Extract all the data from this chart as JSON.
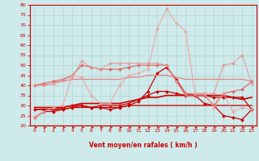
{
  "xlabel": "Vent moyen/en rafales ( km/h )",
  "xlim": [
    -0.5,
    23.5
  ],
  "ylim": [
    20,
    80
  ],
  "yticks": [
    20,
    25,
    30,
    35,
    40,
    45,
    50,
    55,
    60,
    65,
    70,
    75,
    80
  ],
  "xticks": [
    0,
    1,
    2,
    3,
    4,
    5,
    6,
    7,
    8,
    9,
    10,
    11,
    12,
    13,
    14,
    15,
    16,
    17,
    18,
    19,
    20,
    21,
    22,
    23
  ],
  "bg_color": "#ceeaea",
  "grid_color": "#b0d0d0",
  "series": [
    {
      "data": [
        24,
        27,
        27,
        28,
        29,
        30,
        29,
        29,
        28,
        29,
        30,
        32,
        37,
        46,
        49,
        43,
        36,
        35,
        31,
        30,
        25,
        24,
        23,
        28
      ],
      "color": "#cc0000",
      "linewidth": 0.9,
      "marker": "D",
      "markersize": 2.0,
      "alpha": 1.0
    },
    {
      "data": [
        28,
        28,
        28,
        28,
        29,
        29,
        29,
        29,
        29,
        29,
        30,
        30,
        30,
        30,
        30,
        30,
        30,
        30,
        30,
        30,
        30,
        30,
        30,
        30
      ],
      "color": "#cc0000",
      "linewidth": 0.9,
      "marker": null,
      "markersize": 0,
      "alpha": 1.0
    },
    {
      "data": [
        28,
        28,
        28,
        29,
        30,
        30,
        29,
        30,
        30,
        30,
        31,
        33,
        35,
        37,
        37,
        36,
        35,
        35,
        35,
        34,
        34,
        34,
        34,
        28
      ],
      "color": "#cc0000",
      "linewidth": 0.9,
      "marker": "D",
      "markersize": 2.0,
      "alpha": 1.0
    },
    {
      "data": [
        29,
        29,
        29,
        29,
        30,
        31,
        31,
        31,
        31,
        31,
        32,
        33,
        34,
        34,
        35,
        35,
        35,
        35,
        35,
        35,
        35,
        34,
        33,
        34
      ],
      "color": "#cc0000",
      "linewidth": 1.2,
      "marker": null,
      "markersize": 0,
      "alpha": 1.0
    },
    {
      "data": [
        40,
        40,
        41,
        42,
        43,
        43,
        43,
        43,
        43,
        43,
        44,
        44,
        45,
        45,
        45,
        44,
        43,
        43,
        43,
        43,
        43,
        43,
        43,
        42
      ],
      "color": "#e87878",
      "linewidth": 0.9,
      "marker": null,
      "markersize": 0,
      "alpha": 0.9
    },
    {
      "data": [
        40,
        41,
        42,
        43,
        45,
        50,
        49,
        48,
        48,
        48,
        49,
        50,
        50,
        50,
        50,
        42,
        35,
        35,
        35,
        30,
        36,
        37,
        38,
        42
      ],
      "color": "#e06060",
      "linewidth": 0.9,
      "marker": "D",
      "markersize": 2.0,
      "alpha": 0.9
    },
    {
      "data": [
        40,
        40,
        41,
        43,
        44,
        52,
        49,
        48,
        51,
        51,
        51,
        51,
        51,
        51,
        50,
        42,
        36,
        36,
        36,
        36,
        50,
        51,
        55,
        41
      ],
      "color": "#e89090",
      "linewidth": 0.9,
      "marker": "D",
      "markersize": 2.0,
      "alpha": 0.75
    },
    {
      "data": [
        24,
        27,
        29,
        30,
        45,
        44,
        35,
        31,
        31,
        40,
        45,
        46,
        48,
        68,
        78,
        71,
        67,
        36,
        36,
        29,
        36,
        27,
        29,
        28
      ],
      "color": "#f0a0a0",
      "linewidth": 0.9,
      "marker": "D",
      "markersize": 2.0,
      "alpha": 0.8
    }
  ],
  "arrow_color": "#cc0000"
}
